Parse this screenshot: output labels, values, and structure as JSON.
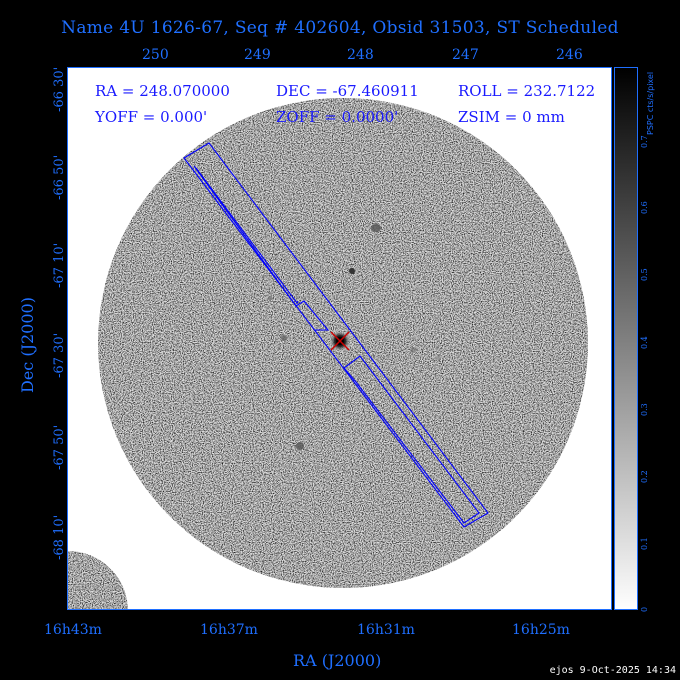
{
  "title": "Name 4U 1626-67, Seq # 402604, Obsid 31503, ST Scheduled",
  "info": {
    "ra": "RA = 248.070000",
    "dec": "DEC = -67.460911",
    "roll": "ROLL = 232.7122",
    "yoff": "YOFF =   0.000'",
    "zoff": "ZOFF =  0.0000'",
    "zsim": "ZSIM = 0 mm"
  },
  "top_ticks": [
    "250",
    "249",
    "248",
    "247",
    "246"
  ],
  "bottom_ticks": [
    "16h43m",
    "16h37m",
    "16h31m",
    "16h25m"
  ],
  "left_ticks": [
    "-66 30'",
    "-66 50'",
    "-67 10'",
    "-67 30'",
    "-67 50'",
    "-68 10'"
  ],
  "x_axis_title": "RA (J2000)",
  "y_axis_title": "Dec (J2000)",
  "colorbar": {
    "label": "PSPC cts/s/pixel",
    "ticks": [
      "0",
      "0.1",
      "0.2",
      "0.3",
      "0.4",
      "0.5",
      "0.6",
      "0.7"
    ]
  },
  "credit": "ejos  9-Oct-2025 14:34",
  "colors": {
    "axis": "#1f6fff",
    "info": "#1a1aff",
    "outline": "#0000ff",
    "marker": "#cc0000"
  }
}
